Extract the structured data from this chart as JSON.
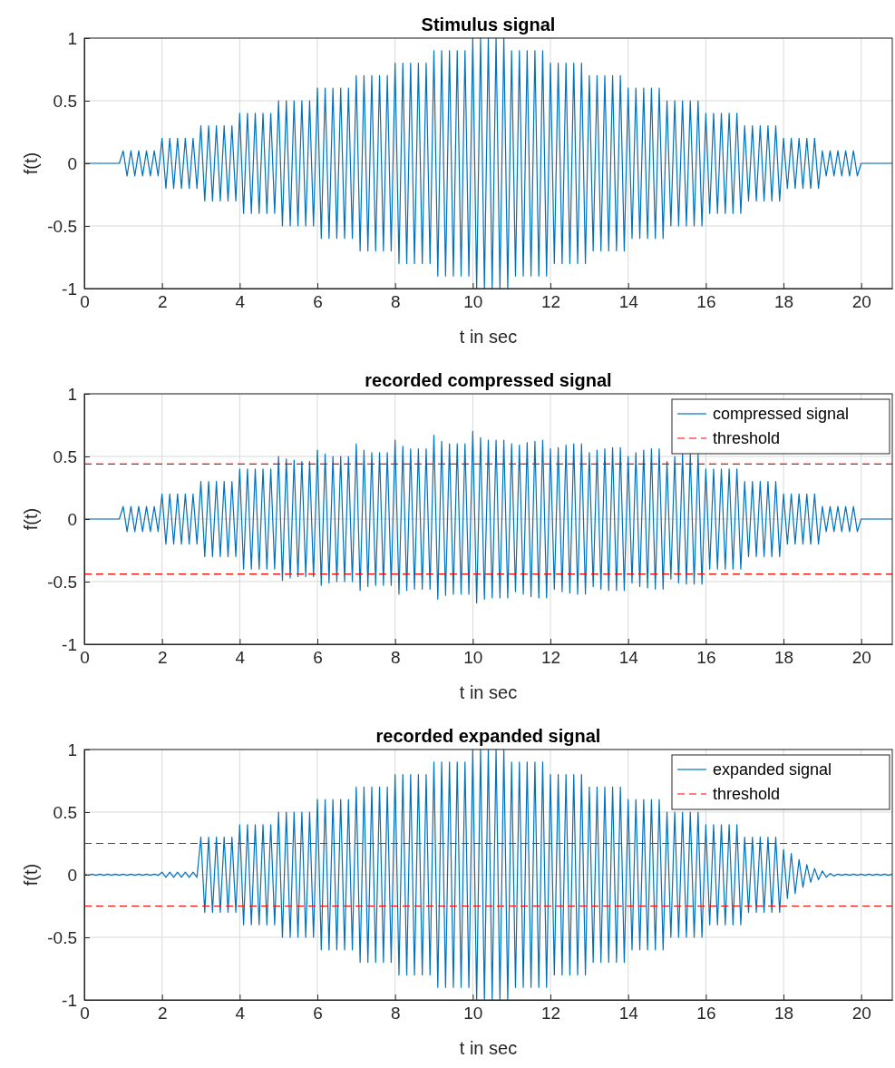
{
  "chart_data": [
    {
      "type": "line",
      "title": "Stimulus signal",
      "xlabel": "t in sec",
      "ylabel": "f(t)",
      "x": [
        0,
        0.1,
        0.2,
        0.3,
        0.4,
        0.5,
        0.6,
        0.7,
        0.8,
        0.9,
        1,
        1.1,
        1.2,
        1.3,
        1.4,
        1.5,
        1.6,
        1.7,
        1.8,
        1.9,
        2,
        2.1,
        2.2,
        2.3,
        2.4,
        2.5,
        2.6,
        2.7,
        2.8,
        2.9,
        3,
        3.1,
        3.2,
        3.3,
        3.4,
        3.5,
        3.6,
        3.7,
        3.8,
        3.9,
        4,
        4.1,
        4.2,
        4.3,
        4.4,
        4.5,
        4.6,
        4.7,
        4.8,
        4.9,
        5,
        5.1,
        5.2,
        5.3,
        5.4,
        5.5,
        5.6,
        5.7,
        5.8,
        5.9,
        6,
        6.1,
        6.2,
        6.3,
        6.4,
        6.5,
        6.6,
        6.7,
        6.8,
        6.9,
        7,
        7.1,
        7.2,
        7.3,
        7.4,
        7.5,
        7.6,
        7.7,
        7.8,
        7.9,
        8,
        8.1,
        8.2,
        8.3,
        8.4,
        8.5,
        8.6,
        8.7,
        8.8,
        8.9,
        9,
        9.1,
        9.2,
        9.3,
        9.4,
        9.5,
        9.6,
        9.7,
        9.8,
        9.9,
        10,
        10.1,
        10.2,
        10.3,
        10.4,
        10.5,
        10.6,
        10.7,
        10.8,
        10.9,
        11,
        11.1,
        11.2,
        11.3,
        11.4,
        11.5,
        11.6,
        11.7,
        11.8,
        11.9,
        12,
        12.1,
        12.2,
        12.3,
        12.4,
        12.5,
        12.6,
        12.7,
        12.8,
        12.9,
        13,
        13.1,
        13.2,
        13.3,
        13.4,
        13.5,
        13.6,
        13.7,
        13.8,
        13.9,
        14,
        14.1,
        14.2,
        14.3,
        14.4,
        14.5,
        14.6,
        14.7,
        14.8,
        14.9,
        15,
        15.1,
        15.2,
        15.3,
        15.4,
        15.5,
        15.6,
        15.7,
        15.8,
        15.9,
        16,
        16.1,
        16.2,
        16.3,
        16.4,
        16.5,
        16.6,
        16.7,
        16.8,
        16.9,
        17,
        17.1,
        17.2,
        17.3,
        17.4,
        17.5,
        17.6,
        17.7,
        17.8,
        17.9,
        18,
        18.1,
        18.2,
        18.3,
        18.4,
        18.5,
        18.6,
        18.7,
        18.8,
        18.9,
        19,
        19.1,
        19.2,
        19.3,
        19.4,
        19.5,
        19.6,
        19.7,
        19.8,
        19.9,
        20,
        20.1,
        20.2,
        20.3,
        20.4,
        20.5,
        20.6,
        20.7,
        20.8
      ],
      "series": [
        {
          "color": "#0072bd",
          "values": [
            0,
            0,
            0,
            0,
            0,
            0,
            0,
            0,
            0,
            0,
            0.1,
            -0.1,
            0.1,
            -0.1,
            0.1,
            -0.1,
            0.1,
            -0.1,
            0.1,
            -0.1,
            0.2,
            -0.2,
            0.2,
            -0.2,
            0.2,
            -0.2,
            0.2,
            -0.2,
            0.2,
            -0.2,
            0.3,
            -0.3,
            0.3,
            -0.3,
            0.3,
            -0.3,
            0.3,
            -0.3,
            0.3,
            -0.3,
            0.4,
            -0.4,
            0.4,
            -0.4,
            0.4,
            -0.4,
            0.4,
            -0.4,
            0.4,
            -0.4,
            0.5,
            -0.5,
            0.5,
            -0.5,
            0.5,
            -0.5,
            0.5,
            -0.5,
            0.5,
            -0.5,
            0.6,
            -0.6,
            0.6,
            -0.6,
            0.6,
            -0.6,
            0.6,
            -0.6,
            0.6,
            -0.6,
            0.7,
            -0.7,
            0.7,
            -0.7,
            0.7,
            -0.7,
            0.7,
            -0.7,
            0.7,
            -0.7,
            0.8,
            -0.8,
            0.8,
            -0.8,
            0.8,
            -0.8,
            0.8,
            -0.8,
            0.8,
            -0.8,
            0.9,
            -0.9,
            0.9,
            -0.9,
            0.9,
            -0.9,
            0.9,
            -0.9,
            0.9,
            -0.9,
            1,
            -1,
            1,
            -1,
            1,
            -1,
            1,
            -1,
            1,
            -1,
            0.9,
            -0.9,
            0.9,
            -0.9,
            0.9,
            -0.9,
            0.9,
            -0.9,
            0.9,
            -0.9,
            0.8,
            -0.8,
            0.8,
            -0.8,
            0.8,
            -0.8,
            0.8,
            -0.8,
            0.8,
            -0.8,
            0.7,
            -0.7,
            0.7,
            -0.7,
            0.7,
            -0.7,
            0.7,
            -0.7,
            0.7,
            -0.7,
            0.6,
            -0.6,
            0.6,
            -0.6,
            0.6,
            -0.6,
            0.6,
            -0.6,
            0.6,
            -0.6,
            0.5,
            -0.5,
            0.5,
            -0.5,
            0.5,
            -0.5,
            0.5,
            -0.5,
            0.5,
            -0.5,
            0.4,
            -0.4,
            0.4,
            -0.4,
            0.4,
            -0.4,
            0.4,
            -0.4,
            0.4,
            -0.4,
            0.3,
            -0.3,
            0.3,
            -0.3,
            0.3,
            -0.3,
            0.3,
            -0.3,
            0.3,
            -0.3,
            0.2,
            -0.2,
            0.2,
            -0.2,
            0.2,
            -0.2,
            0.2,
            -0.2,
            0.2,
            -0.2,
            0.1,
            -0.1,
            0.1,
            -0.1,
            0.1,
            -0.1,
            0.1,
            -0.1,
            0.1,
            -0.1,
            0,
            0,
            0,
            0,
            0,
            0,
            0,
            0,
            0
          ]
        }
      ],
      "xlim": [
        0,
        20.8
      ],
      "xticks": [
        0,
        2,
        4,
        6,
        8,
        10,
        12,
        14,
        16,
        18,
        20
      ],
      "ylim": [
        -1,
        1
      ],
      "yticks": [
        -1,
        -0.5,
        0,
        0.5,
        1
      ],
      "grid": true
    },
    {
      "type": "line",
      "title": "recorded compressed signal",
      "xlabel": "t in sec",
      "ylabel": "f(t)",
      "x": [
        0,
        0.1,
        0.2,
        0.3,
        0.4,
        0.5,
        0.6,
        0.7,
        0.8,
        0.9,
        1,
        1.1,
        1.2,
        1.3,
        1.4,
        1.5,
        1.6,
        1.7,
        1.8,
        1.9,
        2,
        2.1,
        2.2,
        2.3,
        2.4,
        2.5,
        2.6,
        2.7,
        2.8,
        2.9,
        3,
        3.1,
        3.2,
        3.3,
        3.4,
        3.5,
        3.6,
        3.7,
        3.8,
        3.9,
        4,
        4.1,
        4.2,
        4.3,
        4.4,
        4.5,
        4.6,
        4.7,
        4.8,
        4.9,
        5,
        5.1,
        5.2,
        5.3,
        5.4,
        5.5,
        5.6,
        5.7,
        5.8,
        5.9,
        6,
        6.1,
        6.2,
        6.3,
        6.4,
        6.5,
        6.6,
        6.7,
        6.8,
        6.9,
        7,
        7.1,
        7.2,
        7.3,
        7.4,
        7.5,
        7.6,
        7.7,
        7.8,
        7.9,
        8,
        8.1,
        8.2,
        8.3,
        8.4,
        8.5,
        8.6,
        8.7,
        8.8,
        8.9,
        9,
        9.1,
        9.2,
        9.3,
        9.4,
        9.5,
        9.6,
        9.7,
        9.8,
        9.9,
        10,
        10.1,
        10.2,
        10.3,
        10.4,
        10.5,
        10.6,
        10.7,
        10.8,
        10.9,
        11,
        11.1,
        11.2,
        11.3,
        11.4,
        11.5,
        11.6,
        11.7,
        11.8,
        11.9,
        12,
        12.1,
        12.2,
        12.3,
        12.4,
        12.5,
        12.6,
        12.7,
        12.8,
        12.9,
        13,
        13.1,
        13.2,
        13.3,
        13.4,
        13.5,
        13.6,
        13.7,
        13.8,
        13.9,
        14,
        14.1,
        14.2,
        14.3,
        14.4,
        14.5,
        14.6,
        14.7,
        14.8,
        14.9,
        15,
        15.1,
        15.2,
        15.3,
        15.4,
        15.5,
        15.6,
        15.7,
        15.8,
        15.9,
        16,
        16.1,
        16.2,
        16.3,
        16.4,
        16.5,
        16.6,
        16.7,
        16.8,
        16.9,
        17,
        17.1,
        17.2,
        17.3,
        17.4,
        17.5,
        17.6,
        17.7,
        17.8,
        17.9,
        18,
        18.1,
        18.2,
        18.3,
        18.4,
        18.5,
        18.6,
        18.7,
        18.8,
        18.9,
        19,
        19.1,
        19.2,
        19.3,
        19.4,
        19.5,
        19.6,
        19.7,
        19.8,
        19.9,
        20,
        20.1,
        20.2,
        20.3,
        20.4,
        20.5,
        20.6,
        20.7,
        20.8
      ],
      "series": [
        {
          "name": "compressed signal",
          "color": "#0072bd",
          "values": [
            0,
            0,
            0,
            0,
            0,
            0,
            0,
            0,
            0,
            0,
            0.1,
            -0.1,
            0.1,
            -0.1,
            0.1,
            -0.1,
            0.1,
            -0.1,
            0.1,
            -0.1,
            0.2,
            -0.2,
            0.2,
            -0.2,
            0.2,
            -0.2,
            0.2,
            -0.2,
            0.2,
            -0.2,
            0.3,
            -0.3,
            0.3,
            -0.3,
            0.3,
            -0.3,
            0.3,
            -0.3,
            0.3,
            -0.3,
            0.4,
            -0.4,
            0.4,
            -0.4,
            0.4,
            -0.4,
            0.4,
            -0.4,
            0.4,
            -0.4,
            0.5,
            -0.49,
            0.48,
            -0.47,
            0.47,
            -0.46,
            0.46,
            -0.46,
            0.46,
            -0.46,
            0.55,
            -0.53,
            0.52,
            -0.51,
            0.5,
            -0.5,
            0.5,
            -0.5,
            0.5,
            -0.5,
            0.6,
            -0.57,
            0.55,
            -0.54,
            0.53,
            -0.53,
            0.53,
            -0.53,
            0.53,
            -0.53,
            0.63,
            -0.6,
            0.58,
            -0.57,
            0.56,
            -0.56,
            0.56,
            -0.56,
            0.56,
            -0.56,
            0.67,
            -0.64,
            0.62,
            -0.61,
            0.6,
            -0.6,
            0.6,
            -0.6,
            0.6,
            -0.6,
            0.7,
            -0.67,
            0.65,
            -0.64,
            0.63,
            -0.63,
            0.63,
            -0.63,
            0.63,
            -0.63,
            0.6,
            -0.58,
            0.59,
            -0.6,
            0.61,
            -0.62,
            0.62,
            -0.63,
            0.63,
            -0.63,
            0.56,
            -0.56,
            0.57,
            -0.58,
            0.59,
            -0.59,
            0.6,
            -0.6,
            0.6,
            -0.6,
            0.53,
            -0.54,
            0.55,
            -0.56,
            0.56,
            -0.57,
            0.57,
            -0.57,
            0.57,
            -0.57,
            0.5,
            -0.51,
            0.53,
            -0.54,
            0.55,
            -0.55,
            0.56,
            -0.56,
            0.56,
            -0.56,
            0.46,
            -0.48,
            0.5,
            -0.51,
            0.52,
            -0.52,
            0.52,
            -0.52,
            0.52,
            -0.52,
            0.4,
            -0.4,
            0.4,
            -0.4,
            0.4,
            -0.4,
            0.4,
            -0.4,
            0.4,
            -0.4,
            0.3,
            -0.3,
            0.3,
            -0.3,
            0.3,
            -0.3,
            0.3,
            -0.3,
            0.3,
            -0.3,
            0.2,
            -0.2,
            0.2,
            -0.2,
            0.2,
            -0.2,
            0.2,
            -0.2,
            0.2,
            -0.2,
            0.1,
            -0.1,
            0.1,
            -0.1,
            0.1,
            -0.1,
            0.1,
            -0.1,
            0.1,
            -0.1,
            0,
            0,
            0,
            0,
            0,
            0,
            0,
            0,
            0
          ]
        }
      ],
      "ref_lines": [
        {
          "axis": "y",
          "value": 0.44,
          "label": "threshold",
          "color": "#ff0000",
          "line_style": "dashed"
        },
        {
          "axis": "y",
          "value": -0.44,
          "color": "#ff0000",
          "line_style": "dashed"
        }
      ],
      "xlim": [
        0,
        20.8
      ],
      "xticks": [
        0,
        2,
        4,
        6,
        8,
        10,
        12,
        14,
        16,
        18,
        20
      ],
      "ylim": [
        -1,
        1
      ],
      "yticks": [
        -1,
        -0.5,
        0,
        0.5,
        1
      ],
      "grid": true,
      "legend": "top right"
    },
    {
      "type": "line",
      "title": "recorded expanded signal",
      "xlabel": "t in sec",
      "ylabel": "f(t)",
      "x": [
        0,
        0.1,
        0.2,
        0.3,
        0.4,
        0.5,
        0.6,
        0.7,
        0.8,
        0.9,
        1,
        1.1,
        1.2,
        1.3,
        1.4,
        1.5,
        1.6,
        1.7,
        1.8,
        1.9,
        2,
        2.1,
        2.2,
        2.3,
        2.4,
        2.5,
        2.6,
        2.7,
        2.8,
        2.9,
        3,
        3.1,
        3.2,
        3.3,
        3.4,
        3.5,
        3.6,
        3.7,
        3.8,
        3.9,
        4,
        4.1,
        4.2,
        4.3,
        4.4,
        4.5,
        4.6,
        4.7,
        4.8,
        4.9,
        5,
        5.1,
        5.2,
        5.3,
        5.4,
        5.5,
        5.6,
        5.7,
        5.8,
        5.9,
        6,
        6.1,
        6.2,
        6.3,
        6.4,
        6.5,
        6.6,
        6.7,
        6.8,
        6.9,
        7,
        7.1,
        7.2,
        7.3,
        7.4,
        7.5,
        7.6,
        7.7,
        7.8,
        7.9,
        8,
        8.1,
        8.2,
        8.3,
        8.4,
        8.5,
        8.6,
        8.7,
        8.8,
        8.9,
        9,
        9.1,
        9.2,
        9.3,
        9.4,
        9.5,
        9.6,
        9.7,
        9.8,
        9.9,
        10,
        10.1,
        10.2,
        10.3,
        10.4,
        10.5,
        10.6,
        10.7,
        10.8,
        10.9,
        11,
        11.1,
        11.2,
        11.3,
        11.4,
        11.5,
        11.6,
        11.7,
        11.8,
        11.9,
        12,
        12.1,
        12.2,
        12.3,
        12.4,
        12.5,
        12.6,
        12.7,
        12.8,
        12.9,
        13,
        13.1,
        13.2,
        13.3,
        13.4,
        13.5,
        13.6,
        13.7,
        13.8,
        13.9,
        14,
        14.1,
        14.2,
        14.3,
        14.4,
        14.5,
        14.6,
        14.7,
        14.8,
        14.9,
        15,
        15.1,
        15.2,
        15.3,
        15.4,
        15.5,
        15.6,
        15.7,
        15.8,
        15.9,
        16,
        16.1,
        16.2,
        16.3,
        16.4,
        16.5,
        16.6,
        16.7,
        16.8,
        16.9,
        17,
        17.1,
        17.2,
        17.3,
        17.4,
        17.5,
        17.6,
        17.7,
        17.8,
        17.9,
        18,
        18.1,
        18.2,
        18.3,
        18.4,
        18.5,
        18.6,
        18.7,
        18.8,
        18.9,
        19,
        19.1,
        19.2,
        19.3,
        19.4,
        19.5,
        19.6,
        19.7,
        19.8,
        19.9,
        20,
        20.1,
        20.2,
        20.3,
        20.4,
        20.5,
        20.6,
        20.7,
        20.8
      ],
      "series": [
        {
          "name": "expanded signal",
          "color": "#0072bd",
          "values": [
            0.005,
            -0.005,
            0.005,
            -0.005,
            0.005,
            -0.005,
            0.005,
            -0.005,
            0.005,
            -0.005,
            0.005,
            -0.005,
            0.005,
            -0.005,
            0.005,
            -0.005,
            0.005,
            -0.005,
            0.005,
            -0.005,
            0.02,
            -0.02,
            0.02,
            -0.02,
            0.02,
            -0.02,
            0.02,
            -0.02,
            0.02,
            -0.02,
            0.3,
            -0.3,
            0.3,
            -0.3,
            0.3,
            -0.3,
            0.3,
            -0.3,
            0.3,
            -0.3,
            0.4,
            -0.4,
            0.4,
            -0.4,
            0.4,
            -0.4,
            0.4,
            -0.4,
            0.4,
            -0.4,
            0.5,
            -0.5,
            0.5,
            -0.5,
            0.5,
            -0.5,
            0.5,
            -0.5,
            0.5,
            -0.5,
            0.6,
            -0.6,
            0.6,
            -0.6,
            0.6,
            -0.6,
            0.6,
            -0.6,
            0.6,
            -0.6,
            0.7,
            -0.7,
            0.7,
            -0.7,
            0.7,
            -0.7,
            0.7,
            -0.7,
            0.7,
            -0.7,
            0.8,
            -0.8,
            0.8,
            -0.8,
            0.8,
            -0.8,
            0.8,
            -0.8,
            0.8,
            -0.8,
            0.9,
            -0.9,
            0.9,
            -0.9,
            0.9,
            -0.9,
            0.9,
            -0.9,
            0.9,
            -0.9,
            1,
            -1,
            1,
            -1,
            1,
            -1,
            1,
            -1,
            1,
            -1,
            0.9,
            -0.9,
            0.9,
            -0.9,
            0.9,
            -0.9,
            0.9,
            -0.9,
            0.9,
            -0.9,
            0.8,
            -0.8,
            0.8,
            -0.8,
            0.8,
            -0.8,
            0.8,
            -0.8,
            0.8,
            -0.8,
            0.7,
            -0.7,
            0.7,
            -0.7,
            0.7,
            -0.7,
            0.7,
            -0.7,
            0.7,
            -0.7,
            0.6,
            -0.6,
            0.6,
            -0.6,
            0.6,
            -0.6,
            0.6,
            -0.6,
            0.6,
            -0.6,
            0.5,
            -0.5,
            0.5,
            -0.5,
            0.5,
            -0.5,
            0.5,
            -0.5,
            0.5,
            -0.5,
            0.4,
            -0.4,
            0.4,
            -0.4,
            0.4,
            -0.4,
            0.4,
            -0.4,
            0.4,
            -0.4,
            0.3,
            -0.3,
            0.3,
            -0.3,
            0.3,
            -0.3,
            0.3,
            -0.3,
            0.3,
            -0.3,
            0.2,
            -0.19,
            0.17,
            -0.15,
            0.12,
            -0.1,
            0.08,
            -0.06,
            0.05,
            -0.04,
            0.03,
            -0.02,
            0.01,
            -0.01,
            0.005,
            -0.005,
            0.005,
            -0.005,
            0.005,
            -0.005,
            0.005,
            -0.005,
            0.005,
            -0.005,
            0.005,
            -0.005,
            0.005,
            -0.005,
            0.005
          ]
        }
      ],
      "ref_lines": [
        {
          "axis": "y",
          "value": 0.25,
          "label": "threshold",
          "color": "#ff0000",
          "line_style": "dashed"
        },
        {
          "axis": "y",
          "value": -0.25,
          "color": "#ff0000",
          "line_style": "dashed"
        }
      ],
      "xlim": [
        0,
        20.8
      ],
      "xticks": [
        0,
        2,
        4,
        6,
        8,
        10,
        12,
        14,
        16,
        18,
        20
      ],
      "ylim": [
        -1,
        1
      ],
      "yticks": [
        -1,
        -0.5,
        0,
        0.5,
        1
      ],
      "grid": true,
      "legend": "top right"
    }
  ]
}
